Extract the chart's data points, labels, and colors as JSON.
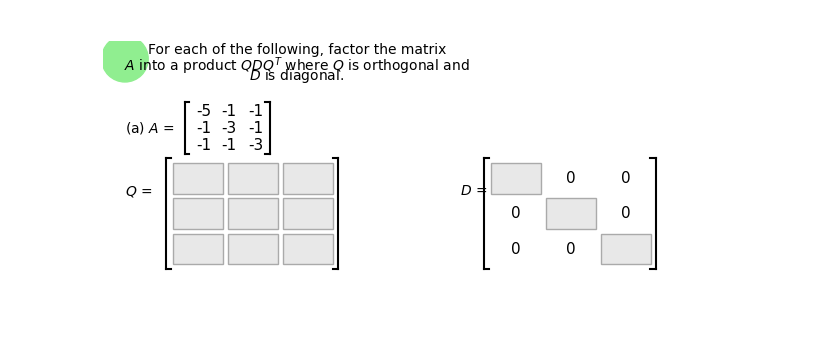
{
  "title_line1": "For each of the following, factor the matrix",
  "title_line2": "$A$ into a product $QDQ^T$ where $Q$ is orthogonal and",
  "title_line3": "$D$ is diagonal.",
  "matrix_label": "(a) $A$ =",
  "matrix_A": [
    [
      -5,
      -1,
      -1
    ],
    [
      -1,
      -3,
      -1
    ],
    [
      -1,
      -1,
      -3
    ]
  ],
  "Q_label": "$Q$ =",
  "D_label": "$D$ =",
  "bg_color": "#ffffff",
  "text_color": "#000000",
  "box_facecolor": "#e8e8e8",
  "box_edgecolor": "#aaaaaa",
  "font_size_text": 10,
  "font_size_matrix": 11,
  "circle_color": "#90EE90"
}
